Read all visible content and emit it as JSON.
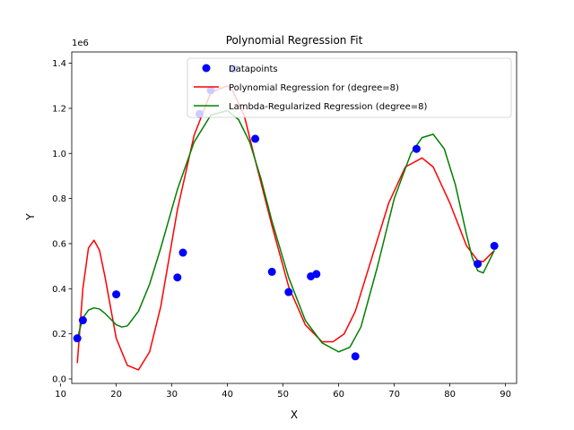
{
  "chart_data": {
    "type": "scatter",
    "title": "Polynomial Regression Fit",
    "xlabel": "X",
    "ylabel": "Y",
    "y_offset_label": "1e6",
    "xlim": [
      12,
      92
    ],
    "ylim": [
      -0.02,
      1.45
    ],
    "xticks": [
      10,
      20,
      30,
      40,
      50,
      60,
      70,
      80,
      90
    ],
    "yticks": [
      0.0,
      0.2,
      0.4,
      0.6,
      0.8,
      1.0,
      1.2,
      1.4
    ],
    "legend_position": "top-right",
    "grid": false,
    "series": [
      {
        "name": "Datapoints",
        "kind": "scatter",
        "color": "#0000ff",
        "x": [
          13,
          14,
          20,
          31,
          32,
          35,
          37,
          41,
          45,
          48,
          51,
          55,
          56,
          63,
          74,
          85,
          88
        ],
        "y": [
          0.18,
          0.26,
          0.375,
          0.45,
          0.56,
          1.175,
          1.28,
          1.375,
          1.065,
          0.475,
          0.385,
          0.455,
          0.465,
          0.1,
          1.02,
          0.51,
          0.59
        ]
      },
      {
        "name": "Polynomial Regression for (degree=8)",
        "kind": "line",
        "color": "#ff0000",
        "x": [
          13,
          14,
          15,
          16,
          17,
          18,
          20,
          22,
          24,
          26,
          28,
          31,
          34,
          37,
          40,
          41,
          43,
          45,
          48,
          51,
          54,
          57,
          59,
          61,
          63,
          66,
          69,
          72,
          75,
          77,
          80,
          83,
          85,
          86,
          88
        ],
        "y": [
          0.07,
          0.4,
          0.58,
          0.615,
          0.57,
          0.45,
          0.18,
          0.06,
          0.04,
          0.12,
          0.32,
          0.75,
          1.08,
          1.27,
          1.3,
          1.275,
          1.17,
          0.97,
          0.68,
          0.41,
          0.24,
          0.165,
          0.165,
          0.2,
          0.3,
          0.54,
          0.78,
          0.94,
          0.98,
          0.94,
          0.78,
          0.59,
          0.525,
          0.52,
          0.57
        ]
      },
      {
        "name": "Lambda-Regularized Regression (degree=8)",
        "kind": "line",
        "color": "#008000",
        "x": [
          13,
          14,
          15,
          16,
          17,
          18,
          20,
          21,
          22,
          24,
          26,
          28,
          31,
          34,
          37,
          40,
          42,
          44,
          46,
          48,
          51,
          54,
          57,
          60,
          62,
          64,
          67,
          70,
          73,
          75,
          77,
          79,
          81,
          83,
          84,
          85,
          86,
          87,
          88
        ],
        "y": [
          0.18,
          0.27,
          0.305,
          0.315,
          0.31,
          0.29,
          0.24,
          0.23,
          0.235,
          0.3,
          0.42,
          0.58,
          0.84,
          1.05,
          1.17,
          1.19,
          1.15,
          1.05,
          0.89,
          0.7,
          0.45,
          0.26,
          0.16,
          0.12,
          0.14,
          0.23,
          0.5,
          0.8,
          1.0,
          1.07,
          1.085,
          1.02,
          0.86,
          0.64,
          0.54,
          0.48,
          0.47,
          0.52,
          0.57
        ]
      }
    ]
  }
}
